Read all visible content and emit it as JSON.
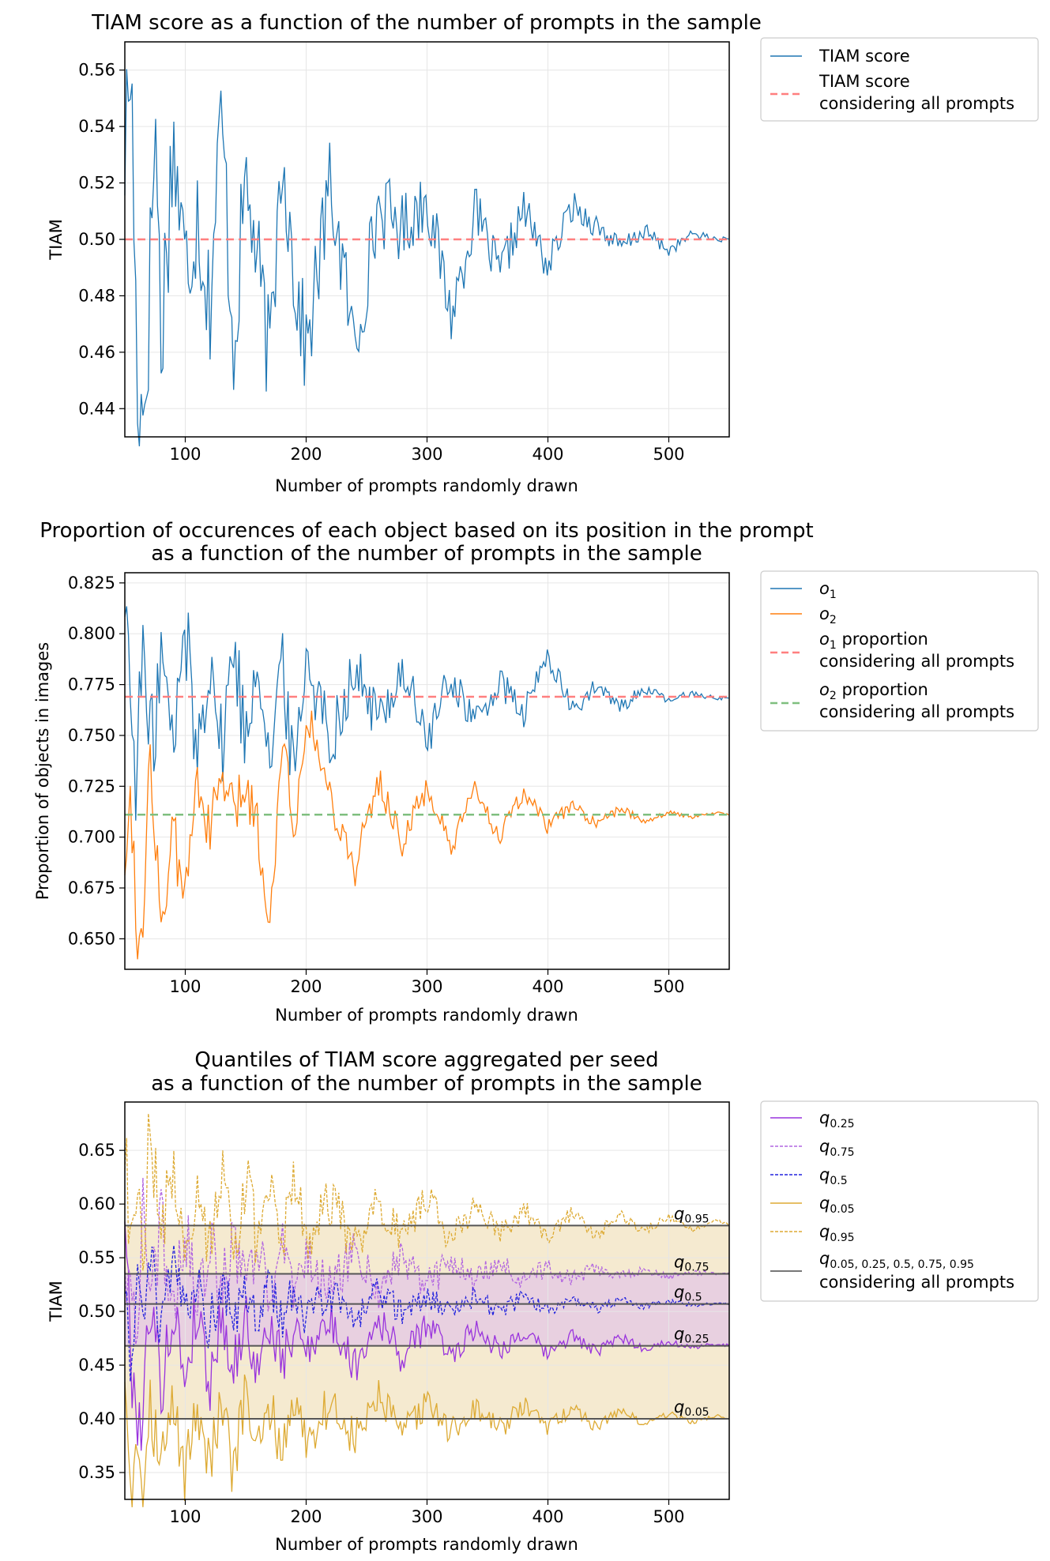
{
  "chart_data": [
    {
      "type": "line",
      "title": "TIAM score as a function of the number of prompts in the sample",
      "xlabel": "Number of prompts randomly drawn",
      "ylabel": "TIAM",
      "xlim": [
        50,
        550
      ],
      "ylim": [
        0.43,
        0.57
      ],
      "xticks": [
        100,
        200,
        300,
        400,
        500
      ],
      "yticks": [
        0.44,
        0.46,
        0.48,
        0.5,
        0.52,
        0.54,
        0.56
      ],
      "grid": true,
      "legend_placement": "outside-right",
      "series": [
        {
          "name": "TIAM score",
          "color": "#1f77b4",
          "style": "solid",
          "x": [
            50,
            55,
            60,
            65,
            70,
            75,
            80,
            90,
            100,
            110,
            120,
            130,
            140,
            150,
            160,
            170,
            180,
            190,
            200,
            220,
            240,
            260,
            280,
            300,
            320,
            340,
            360,
            380,
            400,
            420,
            440,
            460,
            480,
            500,
            520,
            540,
            550
          ],
          "y": [
            0.531,
            0.565,
            0.453,
            0.437,
            0.475,
            0.547,
            0.465,
            0.536,
            0.488,
            0.512,
            0.476,
            0.545,
            0.462,
            0.522,
            0.49,
            0.455,
            0.536,
            0.487,
            0.46,
            0.52,
            0.461,
            0.512,
            0.504,
            0.515,
            0.473,
            0.51,
            0.487,
            0.511,
            0.49,
            0.512,
            0.505,
            0.497,
            0.503,
            0.496,
            0.502,
            0.5,
            0.5
          ]
        },
        {
          "name": "TIAM score considering all prompts",
          "color": "#ff7f7f",
          "style": "dashed",
          "x": [
            50,
            550
          ],
          "y": [
            0.5,
            0.5
          ]
        }
      ],
      "legend": [
        "TIAM score",
        "TIAM score",
        "considering all prompts"
      ]
    },
    {
      "type": "line",
      "title": "Proportion of occurences of each object based on its position in the prompt",
      "subtitle": "as a function of the number of prompts in the sample",
      "xlabel": "Number of prompts randomly drawn",
      "ylabel": "Proportion of objects in images",
      "xlim": [
        50,
        550
      ],
      "ylim": [
        0.635,
        0.83
      ],
      "xticks": [
        100,
        200,
        300,
        400,
        500
      ],
      "yticks": [
        0.65,
        0.675,
        0.7,
        0.725,
        0.75,
        0.775,
        0.8,
        0.825
      ],
      "grid": true,
      "legend_placement": "outside-right",
      "series": [
        {
          "name": "o1",
          "color": "#1f77b4",
          "style": "solid",
          "x": [
            50,
            55,
            60,
            65,
            70,
            80,
            90,
            100,
            110,
            120,
            130,
            140,
            150,
            160,
            170,
            180,
            190,
            200,
            220,
            240,
            260,
            280,
            300,
            320,
            340,
            360,
            380,
            400,
            420,
            440,
            460,
            480,
            500,
            520,
            540,
            550
          ],
          "y": [
            0.823,
            0.765,
            0.728,
            0.8,
            0.735,
            0.79,
            0.742,
            0.806,
            0.738,
            0.795,
            0.741,
            0.796,
            0.746,
            0.795,
            0.736,
            0.785,
            0.73,
            0.791,
            0.748,
            0.782,
            0.757,
            0.783,
            0.747,
            0.779,
            0.756,
            0.776,
            0.76,
            0.79,
            0.762,
            0.774,
            0.764,
            0.773,
            0.767,
            0.771,
            0.768,
            0.769
          ]
        },
        {
          "name": "o2",
          "color": "#ff7f0e",
          "style": "solid",
          "x": [
            50,
            55,
            60,
            65,
            70,
            80,
            90,
            100,
            110,
            120,
            130,
            140,
            150,
            160,
            170,
            180,
            190,
            200,
            220,
            240,
            260,
            280,
            300,
            320,
            340,
            360,
            380,
            400,
            420,
            440,
            460,
            480,
            500,
            520,
            540,
            550
          ],
          "y": [
            0.69,
            0.721,
            0.658,
            0.642,
            0.753,
            0.657,
            0.7,
            0.668,
            0.734,
            0.7,
            0.73,
            0.711,
            0.725,
            0.706,
            0.651,
            0.756,
            0.7,
            0.762,
            0.72,
            0.684,
            0.728,
            0.697,
            0.725,
            0.693,
            0.724,
            0.7,
            0.722,
            0.705,
            0.716,
            0.706,
            0.714,
            0.708,
            0.712,
            0.71,
            0.712,
            0.711
          ]
        },
        {
          "name": "o1 proportion considering all prompts",
          "color": "#ff7f7f",
          "style": "dashed",
          "x": [
            50,
            550
          ],
          "y": [
            0.769,
            0.769
          ]
        },
        {
          "name": "o2 proportion considering all prompts",
          "color": "#7fbf7f",
          "style": "dashed",
          "x": [
            50,
            550
          ],
          "y": [
            0.711,
            0.711
          ]
        }
      ],
      "legend": [
        "o",
        "1",
        "o",
        "2",
        "o",
        "1",
        " proportion",
        "considering all prompts",
        "o",
        "2",
        " proportion",
        "considering all prompts"
      ]
    },
    {
      "type": "line",
      "title": "Quantiles of TIAM score aggregated per seed",
      "subtitle": "as a function of the number of prompts in the sample",
      "xlabel": "Number of prompts randomly drawn",
      "ylabel": "TIAM",
      "xlim": [
        50,
        550
      ],
      "ylim": [
        0.325,
        0.695
      ],
      "xticks": [
        100,
        200,
        300,
        400,
        500
      ],
      "yticks": [
        0.35,
        0.4,
        0.45,
        0.5,
        0.55,
        0.6,
        0.65
      ],
      "grid": true,
      "legend_placement": "outside-right",
      "series": [
        {
          "name": "q0.25",
          "color": "#9933dd",
          "style": "solid",
          "x": [
            50,
            55,
            60,
            65,
            70,
            80,
            90,
            100,
            110,
            120,
            130,
            140,
            150,
            160,
            170,
            180,
            190,
            200,
            220,
            240,
            260,
            280,
            300,
            320,
            340,
            360,
            380,
            400,
            420,
            440,
            460,
            480,
            500,
            520,
            540,
            550
          ],
          "y": [
            0.6,
            0.45,
            0.41,
            0.39,
            0.52,
            0.43,
            0.5,
            0.44,
            0.505,
            0.43,
            0.5,
            0.445,
            0.495,
            0.44,
            0.49,
            0.45,
            0.48,
            0.47,
            0.49,
            0.45,
            0.495,
            0.455,
            0.49,
            0.46,
            0.485,
            0.465,
            0.48,
            0.46,
            0.478,
            0.462,
            0.476,
            0.465,
            0.472,
            0.466,
            0.47,
            0.468
          ]
        },
        {
          "name": "q0.75",
          "color": "#b266e0",
          "style": "dashed",
          "x": [
            50,
            55,
            60,
            65,
            70,
            80,
            90,
            100,
            110,
            120,
            130,
            140,
            150,
            160,
            170,
            180,
            190,
            200,
            220,
            240,
            260,
            280,
            300,
            320,
            340,
            360,
            380,
            400,
            420,
            440,
            460,
            480,
            500,
            520,
            540,
            550
          ],
          "y": [
            0.56,
            0.5,
            0.47,
            0.6,
            0.5,
            0.58,
            0.51,
            0.57,
            0.515,
            0.565,
            0.52,
            0.56,
            0.525,
            0.555,
            0.515,
            0.56,
            0.525,
            0.55,
            0.52,
            0.555,
            0.522,
            0.55,
            0.525,
            0.548,
            0.528,
            0.545,
            0.528,
            0.542,
            0.53,
            0.54,
            0.532,
            0.538,
            0.533,
            0.536,
            0.535,
            0.535
          ]
        },
        {
          "name": "q0.5",
          "color": "#2222dd",
          "style": "dashed",
          "x": [
            50,
            55,
            60,
            65,
            70,
            80,
            90,
            100,
            110,
            120,
            130,
            140,
            150,
            160,
            170,
            180,
            190,
            200,
            220,
            240,
            260,
            280,
            300,
            320,
            340,
            360,
            380,
            400,
            420,
            440,
            460,
            480,
            500,
            520,
            540,
            550
          ],
          "y": [
            0.53,
            0.45,
            0.53,
            0.47,
            0.56,
            0.48,
            0.54,
            0.49,
            0.53,
            0.485,
            0.525,
            0.49,
            0.52,
            0.495,
            0.525,
            0.49,
            0.52,
            0.495,
            0.518,
            0.495,
            0.52,
            0.498,
            0.516,
            0.5,
            0.514,
            0.5,
            0.513,
            0.502,
            0.512,
            0.503,
            0.51,
            0.505,
            0.509,
            0.506,
            0.508,
            0.507
          ]
        },
        {
          "name": "q0.05",
          "color": "#ddaa33",
          "style": "solid",
          "x": [
            50,
            55,
            60,
            65,
            70,
            80,
            90,
            100,
            110,
            120,
            130,
            140,
            150,
            160,
            170,
            180,
            190,
            200,
            220,
            240,
            260,
            280,
            300,
            320,
            340,
            360,
            380,
            400,
            420,
            440,
            460,
            480,
            500,
            520,
            540,
            550
          ],
          "y": [
            0.45,
            0.34,
            0.39,
            0.34,
            0.42,
            0.36,
            0.41,
            0.35,
            0.415,
            0.36,
            0.41,
            0.35,
            0.425,
            0.365,
            0.41,
            0.37,
            0.42,
            0.38,
            0.415,
            0.38,
            0.42,
            0.385,
            0.415,
            0.388,
            0.41,
            0.39,
            0.412,
            0.392,
            0.41,
            0.393,
            0.408,
            0.395,
            0.405,
            0.397,
            0.403,
            0.4
          ]
        },
        {
          "name": "q0.95",
          "color": "#ddaa33",
          "style": "dashed",
          "x": [
            50,
            55,
            60,
            65,
            70,
            80,
            90,
            100,
            110,
            120,
            130,
            140,
            150,
            160,
            170,
            180,
            190,
            200,
            220,
            240,
            260,
            280,
            300,
            320,
            340,
            360,
            380,
            400,
            420,
            440,
            460,
            480,
            500,
            520,
            540,
            550
          ],
          "y": [
            0.65,
            0.56,
            0.6,
            0.55,
            0.68,
            0.57,
            0.64,
            0.56,
            0.62,
            0.56,
            0.635,
            0.555,
            0.625,
            0.56,
            0.61,
            0.56,
            0.63,
            0.565,
            0.605,
            0.56,
            0.605,
            0.565,
            0.61,
            0.565,
            0.6,
            0.57,
            0.595,
            0.57,
            0.592,
            0.572,
            0.59,
            0.575,
            0.588,
            0.576,
            0.585,
            0.58
          ]
        },
        {
          "name": "q0.05, 0.25, 0.5, 0.75, 0.95 considering all prompts",
          "color": "#555555",
          "style": "solid",
          "hlines": [
            0.4,
            0.468,
            0.507,
            0.535,
            0.58
          ]
        }
      ],
      "band_colors": {
        "outer": "#f5ead0",
        "inner": "#e8d0e0"
      },
      "annotations": [
        {
          "base": "q",
          "sub": "0.95",
          "y": 0.58
        },
        {
          "base": "q",
          "sub": "0.75",
          "y": 0.535
        },
        {
          "base": "q",
          "sub": "0.5",
          "y": 0.507
        },
        {
          "base": "q",
          "sub": "0.25",
          "y": 0.468
        },
        {
          "base": "q",
          "sub": "0.05",
          "y": 0.4
        }
      ],
      "legend": [
        "q",
        "0.25",
        "q",
        "0.75",
        "q",
        "0.5",
        "q",
        "0.05",
        "q",
        "0.95",
        "q",
        "0.05, 0.25, 0.5, 0.75, 0.95",
        "considering all prompts"
      ]
    }
  ]
}
